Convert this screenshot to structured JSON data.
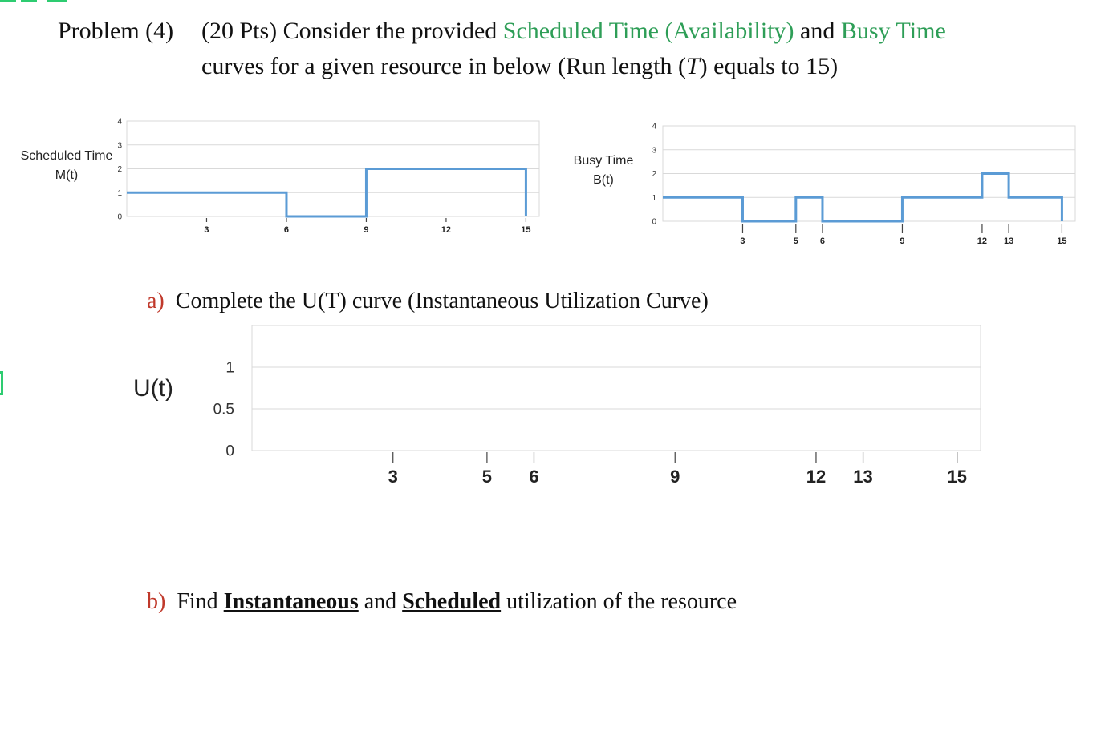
{
  "header": {
    "problem_label": "Problem (4)",
    "line1_prefix": "(20 Pts) Consider the provided ",
    "scheduled_term": "Scheduled Time (Availability)",
    "and_word": " and ",
    "busy_term": "Busy Time",
    "line2": "curves for a given resource in below (Run length (",
    "run_var": "T",
    "line2_suffix": ") equals to 15)"
  },
  "part_a": {
    "letter": "a)",
    "text": "Complete the U(T) curve (Instantaneous Utilization Curve)"
  },
  "part_b": {
    "letter": "b)",
    "find": "Find ",
    "instantaneous": "Instantaneous",
    "and": " and ",
    "scheduled": "Scheduled",
    "rest": " utilization of the resource"
  },
  "chart_data": [
    {
      "type": "line",
      "step": true,
      "title": "",
      "ylabel_line1": "Scheduled Time",
      "ylabel_line2": "M(t)",
      "ylim": [
        0,
        4
      ],
      "yticks": [
        "0",
        "1",
        "2",
        "3",
        "4"
      ],
      "xticks": [
        "3",
        "6",
        "9",
        "12",
        "15"
      ],
      "xlim": [
        0,
        15.5
      ],
      "grid": true,
      "series": [
        {
          "name": "M(t)",
          "x": [
            0,
            6,
            6,
            9,
            9,
            15,
            15
          ],
          "y": [
            1,
            1,
            0,
            0,
            2,
            2,
            0
          ]
        }
      ]
    },
    {
      "type": "line",
      "step": true,
      "title": "",
      "ylabel_line1": "Busy Time",
      "ylabel_line2": "B(t)",
      "ylim": [
        0,
        4
      ],
      "yticks": [
        "0",
        "1",
        "2",
        "3",
        "4"
      ],
      "xticks": [
        "3",
        "5",
        "6",
        "9",
        "12",
        "13",
        "15"
      ],
      "xlim": [
        0,
        15.5
      ],
      "grid": true,
      "series": [
        {
          "name": "B(t)",
          "x": [
            0,
            3,
            3,
            5,
            5,
            6,
            6,
            9,
            9,
            12,
            12,
            13,
            13,
            15,
            15
          ],
          "y": [
            1,
            1,
            0,
            0,
            1,
            1,
            0,
            0,
            1,
            1,
            2,
            2,
            1,
            1,
            0
          ]
        }
      ]
    },
    {
      "type": "line",
      "title": "",
      "ylabel": "U(t)",
      "ylim": [
        0,
        1.5
      ],
      "yticks": [
        "0",
        "0.5",
        "1"
      ],
      "xticks": [
        "3",
        "5",
        "6",
        "9",
        "12",
        "13",
        "15"
      ],
      "xlim": [
        0,
        15.5
      ],
      "grid": true,
      "series": []
    }
  ],
  "colors": {
    "line": "#5b9bd5",
    "grid": "#d9d9d9",
    "green": "#2e9e57",
    "red": "#c0392b"
  }
}
